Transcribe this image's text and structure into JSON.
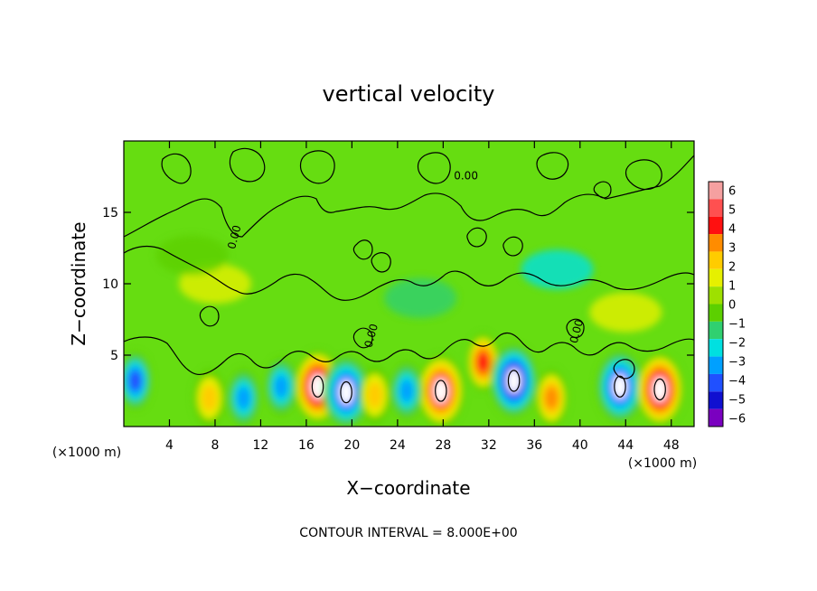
{
  "chart_data": {
    "type": "heatmap",
    "title": "vertical velocity",
    "xlabel": "X−coordinate",
    "ylabel": "Z−coordinate",
    "x_unit_label": "(×1000 m)",
    "x_unit_label_right": "(×1000 m)",
    "xlim": [
      0,
      50
    ],
    "ylim": [
      0,
      20
    ],
    "x_ticks": [
      4,
      8,
      12,
      16,
      20,
      24,
      28,
      32,
      36,
      40,
      44,
      48
    ],
    "y_ticks": [
      5,
      10,
      15
    ],
    "colorbar": {
      "min": -6,
      "max": 6,
      "labels": [
        "6",
        "5",
        "4",
        "3",
        "2",
        "1",
        "0",
        "−1",
        "−2",
        "−3",
        "−4",
        "−5",
        "−6"
      ],
      "colors": [
        "#f5a0a0",
        "#ff5050",
        "#ff1010",
        "#ff8c00",
        "#ffcc00",
        "#e6f000",
        "#9ee000",
        "#5cd000",
        "#30d070",
        "#00e0e0",
        "#00a0ff",
        "#2050ff",
        "#1010d0",
        "#7a00c0"
      ]
    },
    "contour_labels": [
      "0.00",
      "0.00",
      "0.00",
      "0.00"
    ],
    "footer": "CONTOUR INTERVAL = 8.000E+00",
    "updraft_cores": [
      {
        "x": 17.0,
        "z": 2.8,
        "w": 6
      },
      {
        "x": 19.5,
        "z": 2.4,
        "w": -5
      },
      {
        "x": 27.8,
        "z": 2.5,
        "w": 5
      },
      {
        "x": 31.5,
        "z": 4.5,
        "w": 4
      },
      {
        "x": 34.2,
        "z": 3.2,
        "w": -6
      },
      {
        "x": 43.5,
        "z": 2.8,
        "w": -5
      },
      {
        "x": 47.0,
        "z": 2.6,
        "w": 6
      },
      {
        "x": 13.8,
        "z": 2.8,
        "w": -3
      },
      {
        "x": 24.8,
        "z": 2.5,
        "w": -3
      },
      {
        "x": 10.5,
        "z": 2.0,
        "w": -3
      },
      {
        "x": 1.0,
        "z": 3.2,
        "w": -4
      },
      {
        "x": 7.5,
        "z": 2.0,
        "w": 2
      },
      {
        "x": 37.5,
        "z": 2.0,
        "w": 3
      },
      {
        "x": 22.0,
        "z": 2.2,
        "w": 2
      }
    ]
  }
}
